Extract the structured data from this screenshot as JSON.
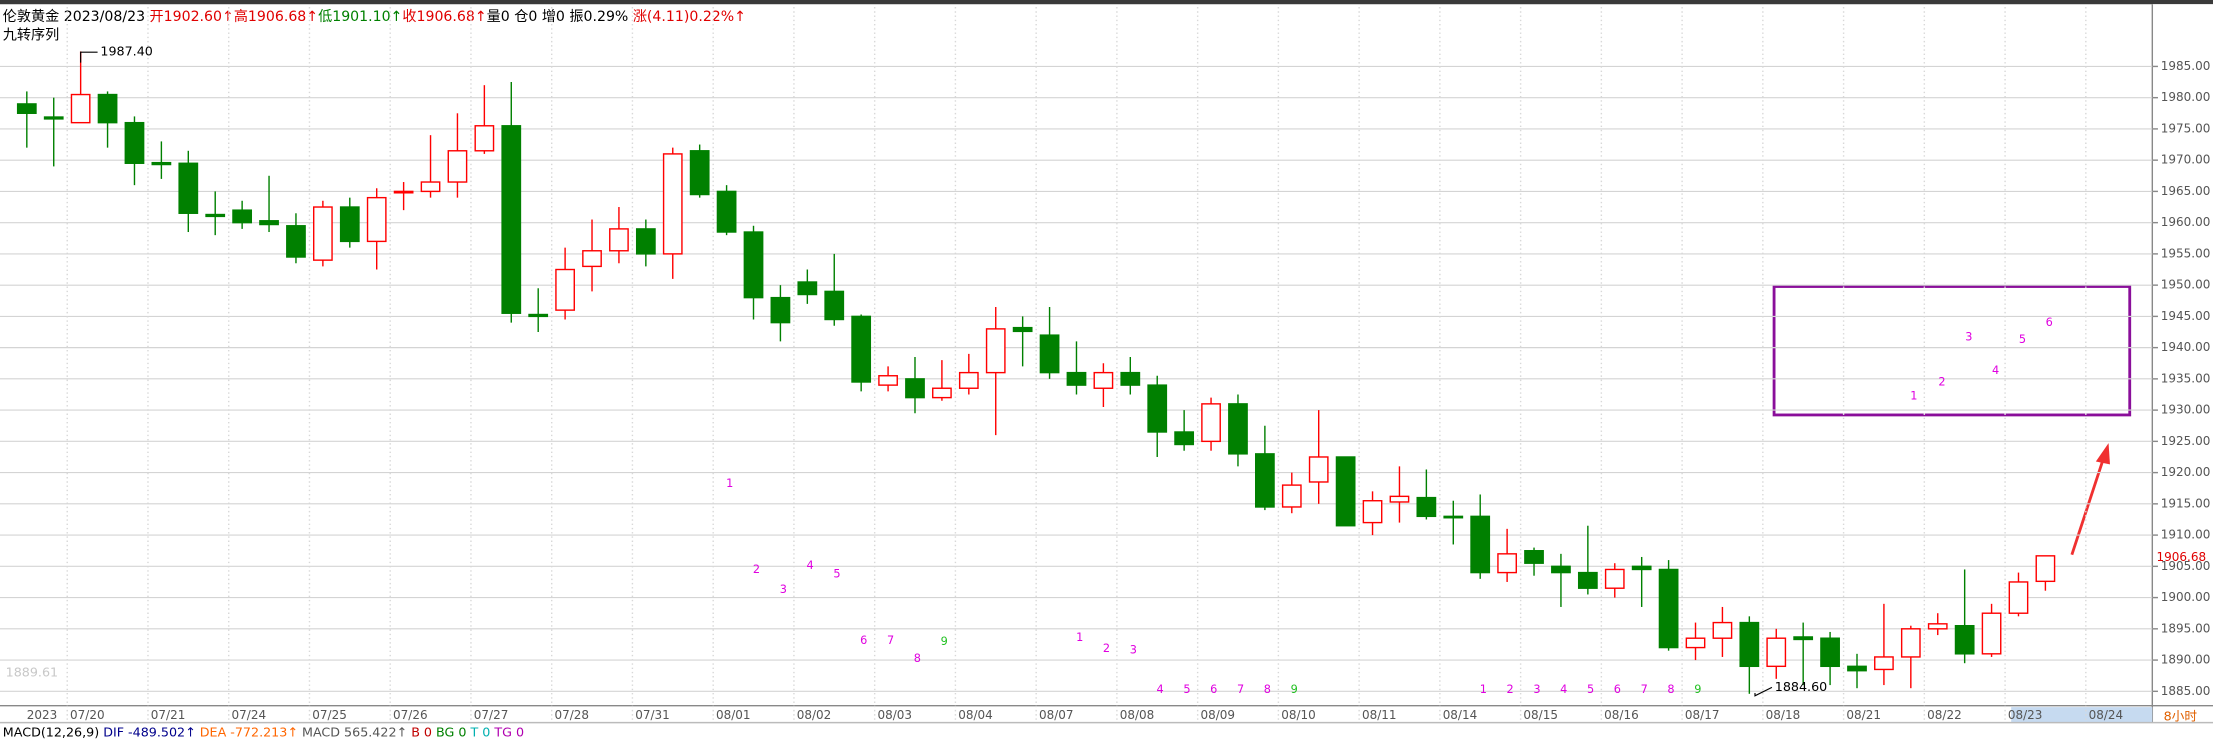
{
  "chart_data": {
    "type": "candlestick",
    "header": [
      {
        "text": "伦敦黄金 2023/08/23 ",
        "color": "#000000"
      },
      {
        "text": "开1902.60↑",
        "color": "#e00000"
      },
      {
        "text": "高1906.68↑",
        "color": "#e00000"
      },
      {
        "text": "低1901.10↑",
        "color": "#008000"
      },
      {
        "text": "收1906.68↑",
        "color": "#e00000"
      },
      {
        "text": "量0 ",
        "color": "#000000"
      },
      {
        "text": "仓0 ",
        "color": "#000000"
      },
      {
        "text": "增0 ",
        "color": "#000000"
      },
      {
        "text": "振0.29% ",
        "color": "#000000"
      },
      {
        "text": "涨(4.11)0.22%↑",
        "color": "#e00000"
      }
    ],
    "indicator_name": "九转序列",
    "footer": [
      {
        "text": "MACD(12,26,9) ",
        "color": "#000000"
      },
      {
        "text": "DIF -489.502↑ ",
        "color": "#00008b"
      },
      {
        "text": "DEA -772.213↑ ",
        "color": "#ff6600"
      },
      {
        "text": "MACD 565.422↑ ",
        "color": "#555555"
      },
      {
        "text": "B 0 ",
        "color": "#c00000"
      },
      {
        "text": "BG 0 ",
        "color": "#008000"
      },
      {
        "text": "T 0 ",
        "color": "#00b0b0"
      },
      {
        "text": "TG 0",
        "color": "#b000b0"
      }
    ],
    "period_label": "8小时",
    "corner_value": "1889.61",
    "high_marker": "1987.40",
    "low_marker": "1884.60",
    "last_price_label": "1906.68",
    "up_color": "#ff0000",
    "down_color": "#008000",
    "x_labels": [
      "2023",
      "07/20",
      "07/21",
      "07/24",
      "07/25",
      "07/26",
      "07/27",
      "07/28",
      "07/31",
      "08/01",
      "08/02",
      "08/03",
      "08/04",
      "08/07",
      "08/08",
      "08/09",
      "08/10",
      "08/11",
      "08/14",
      "08/15",
      "08/16",
      "08/17",
      "08/18",
      "08/21",
      "08/22",
      "08/23",
      "08/24"
    ],
    "open": [
      1979,
      1976.9,
      1976,
      1980.5,
      1976,
      1969.6,
      1969.5,
      1961.3,
      1962,
      1960.3,
      1959.5,
      1954,
      1962.5,
      1957,
      1965,
      1965,
      1966.5,
      1971.5,
      1975.5,
      1945.3,
      1946,
      1953,
      1955.5,
      1959,
      1955,
      1971.5,
      1965,
      1958.5,
      1948,
      1950.5,
      1949,
      1945,
      1934,
      1935,
      1932,
      1933.5,
      1936,
      1943.2,
      1942,
      1936,
      1933.5,
      1936,
      1934,
      1926.5,
      1925,
      1931,
      1923,
      1914.5,
      1918.5,
      1922.5,
      1912,
      1915.3,
      1916,
      1913,
      1913,
      1904,
      1907.5,
      1905,
      1904,
      1901.5,
      1905,
      1904.5,
      1892,
      1893.5,
      1896,
      1889,
      1893.7,
      1893.5,
      1889,
      1888.5,
      1890.5,
      1895,
      1895.5,
      1891,
      1897.5,
      1902.6
    ],
    "high": [
      1981,
      1980,
      1987.4,
      1981,
      1977,
      1973,
      1971.5,
      1965,
      1963.5,
      1967.5,
      1961.5,
      1963.5,
      1964,
      1965.5,
      1966.5,
      1974,
      1977.5,
      1982,
      1982.5,
      1949.5,
      1956,
      1960.5,
      1962.5,
      1960.5,
      1972,
      1972.5,
      1966,
      1959.5,
      1950,
      1952.5,
      1955,
      1945.3,
      1937,
      1938.5,
      1938,
      1939,
      1946.5,
      1945,
      1946.5,
      1941,
      1937.5,
      1938.5,
      1935.5,
      1930,
      1932,
      1932.5,
      1927.5,
      1920,
      1930,
      1922.5,
      1917,
      1921,
      1920.5,
      1915.5,
      1916.5,
      1911,
      1908,
      1907,
      1911.5,
      1905.5,
      1906.5,
      1906,
      1896,
      1898.5,
      1897,
      1895,
      1896,
      1894.5,
      1891,
      1899,
      1895.5,
      1897.5,
      1904.5,
      1899,
      1904,
      1906.68
    ],
    "low": [
      1972,
      1969,
      1976,
      1972,
      1966,
      1967,
      1958.5,
      1958,
      1959,
      1958.5,
      1953.5,
      1953,
      1956,
      1952.5,
      1962,
      1964,
      1964,
      1971,
      1944,
      1942.5,
      1944.5,
      1949,
      1953.5,
      1953,
      1951,
      1964,
      1958,
      1944.5,
      1941,
      1947,
      1943.5,
      1933,
      1933,
      1929.5,
      1931.5,
      1932.5,
      1926,
      1937,
      1935,
      1932.5,
      1930.5,
      1932.5,
      1922.5,
      1923.5,
      1923.5,
      1921,
      1914,
      1913.5,
      1915,
      1911.5,
      1910,
      1912,
      1912.5,
      1908.5,
      1903,
      1902.5,
      1903.5,
      1898.5,
      1900.5,
      1900,
      1898.5,
      1891.5,
      1890,
      1890.5,
      1884.6,
      1887,
      1886,
      1886,
      1885.5,
      1886,
      1885.5,
      1894,
      1889.5,
      1890.5,
      1897,
      1901.1
    ],
    "close": [
      1977.5,
      1976.6,
      1980.5,
      1976,
      1969.5,
      1969.3,
      1961.5,
      1961,
      1960,
      1959.7,
      1954.5,
      1962.5,
      1957,
      1964,
      1965,
      1966.5,
      1971.5,
      1975.5,
      1945.5,
      1945,
      1952.5,
      1955.5,
      1959,
      1955,
      1971,
      1964.5,
      1958.5,
      1948,
      1944,
      1948.5,
      1944.5,
      1934.5,
      1935.5,
      1932,
      1933.5,
      1936,
      1943,
      1942.6,
      1936,
      1934,
      1936,
      1934,
      1926.5,
      1924.5,
      1931,
      1923,
      1914.5,
      1918,
      1922.5,
      1911.5,
      1915.5,
      1916.2,
      1913,
      1912.8,
      1904,
      1907,
      1905.5,
      1904,
      1901.5,
      1904.5,
      1904.5,
      1892,
      1893.5,
      1896,
      1889,
      1893.5,
      1893.3,
      1889,
      1888.3,
      1890.5,
      1895,
      1895.8,
      1891,
      1897.5,
      1902.5,
      1906.68
    ],
    "sequence_labels": [
      "1",
      "2",
      "3",
      "4",
      "5",
      "6",
      "7",
      "8",
      "9",
      "1",
      "2",
      "3",
      "4",
      "5",
      "6",
      "7",
      "8",
      "9",
      "1",
      "2",
      "3",
      "4",
      "5",
      "6",
      "7",
      "8",
      "9",
      "1",
      "2",
      "3",
      "4",
      "5",
      "6"
    ],
    "ylim": [
      1882.7,
      1994.5
    ],
    "yticks": [
      {
        "value": 1985,
        "label": "1985.00"
      },
      {
        "value": 1980,
        "label": "1980.00"
      },
      {
        "value": 1975,
        "label": "1975.00"
      },
      {
        "value": 1970,
        "label": "1970.00"
      },
      {
        "value": 1965,
        "label": "1965.00"
      },
      {
        "value": 1960,
        "label": "1960.00"
      },
      {
        "value": 1955,
        "label": "1955.00"
      },
      {
        "value": 1950,
        "label": "1950.00"
      },
      {
        "value": 1945,
        "label": "1945.00"
      },
      {
        "value": 1940,
        "label": "1940.00"
      },
      {
        "value": 1935,
        "label": "1935.00"
      },
      {
        "value": 1930,
        "label": "1930.00"
      },
      {
        "value": 1925,
        "label": "1925.00"
      },
      {
        "value": 1920,
        "label": "1920.00"
      },
      {
        "value": 1915,
        "label": "1915.00"
      },
      {
        "value": 1910,
        "label": "1910.00"
      },
      {
        "value": 1905,
        "label": "1905.00"
      },
      {
        "value": 1900,
        "label": "1900.00"
      },
      {
        "value": 1895,
        "label": "1895.00"
      },
      {
        "value": 1890,
        "label": "1890.00"
      },
      {
        "value": 1885,
        "label": "1885.00"
      }
    ],
    "grid": true
  }
}
